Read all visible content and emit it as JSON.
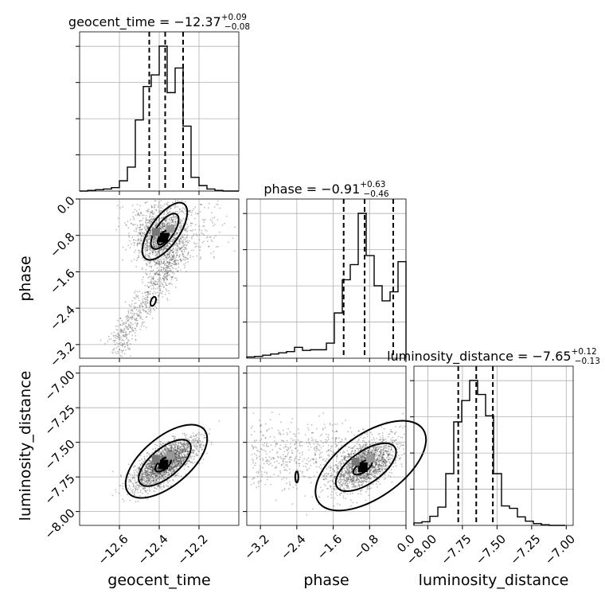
{
  "chart_data": {
    "type": "corner",
    "parameters": [
      "geocent_time",
      "phase",
      "luminosity_distance"
    ],
    "titles": [
      {
        "param": "geocent_time",
        "median": "−12.37",
        "upper": "+0.09",
        "lower": "−0.08"
      },
      {
        "param": "phase",
        "median": "−0.91",
        "upper": "+0.63",
        "lower": "−0.46"
      },
      {
        "param": "luminosity_distance",
        "median": "−7.65",
        "upper": "+0.12",
        "lower": "−0.13"
      }
    ],
    "ranges": {
      "geocent_time": [
        -12.8,
        -12.0
      ],
      "phase": [
        -3.5,
        0.0
      ],
      "luminosity_distance": [
        -8.1,
        -6.95
      ]
    },
    "ticks": {
      "geocent_time": {
        "values": [
          -12.6,
          -12.4,
          -12.2
        ],
        "labels": [
          "−12.6",
          "−12.4",
          "−12.2"
        ]
      },
      "phase_x": {
        "values": [
          -3.2,
          -2.4,
          -1.6,
          -0.8,
          0.0
        ],
        "labels": [
          "−3.2",
          "−2.4",
          "−1.6",
          "−0.8",
          "0.0"
        ]
      },
      "phase_y": {
        "values": [
          0.0,
          -0.8,
          -1.6,
          -2.4,
          -3.2
        ],
        "labels": [
          "0.0",
          "−0.8",
          "−1.6",
          "−2.4",
          "−3.2"
        ]
      },
      "luminosity_distance_x": {
        "values": [
          -8.0,
          -7.75,
          -7.5,
          -7.25,
          -7.0
        ],
        "labels": [
          "−8.00",
          "−7.75",
          "−7.50",
          "−7.25",
          "−7.00"
        ]
      },
      "luminosity_distance_y": {
        "values": [
          -7.0,
          -7.25,
          -7.5,
          -7.75,
          -8.0
        ],
        "labels": [
          "−7.00",
          "−7.25",
          "−7.50",
          "−7.75",
          "−8.00"
        ]
      }
    },
    "quantiles": {
      "geocent_time": [
        -12.45,
        -12.37,
        -12.28
      ],
      "phase": [
        -1.37,
        -0.91,
        -0.28
      ],
      "luminosity_distance": [
        -7.78,
        -7.65,
        -7.53
      ]
    },
    "histograms": {
      "geocent_time": {
        "edges": [
          -12.8,
          -12.76,
          -12.72,
          -12.68,
          -12.64,
          -12.6,
          -12.56,
          -12.52,
          -12.48,
          -12.44,
          -12.4,
          -12.36,
          -12.32,
          -12.28,
          -12.24,
          -12.2,
          -12.16,
          -12.12,
          -12.08,
          -12.04,
          -12.0
        ],
        "counts": [
          0,
          1,
          2,
          3,
          5,
          15,
          35,
          104,
          153,
          170,
          212,
          144,
          180,
          95,
          20,
          8,
          3,
          1,
          0,
          0
        ]
      },
      "phase": {
        "edges": [
          -3.5,
          -3.325,
          -3.15,
          -2.975,
          -2.8,
          -2.625,
          -2.45,
          -2.275,
          -2.1,
          -1.925,
          -1.75,
          -1.575,
          -1.4,
          -1.225,
          -1.05,
          -0.875,
          -0.7,
          -0.525,
          -0.35,
          -0.175,
          0.0
        ],
        "counts": [
          2,
          3,
          5,
          7,
          9,
          11,
          18,
          13,
          14,
          14,
          25,
          75,
          130,
          155,
          240,
          170,
          120,
          95,
          110,
          160
        ]
      },
      "luminosity_distance": {
        "edges": [
          -8.1,
          -8.0425,
          -7.985,
          -7.9275,
          -7.87,
          -7.8125,
          -7.755,
          -7.6975,
          -7.64,
          -7.5825,
          -7.525,
          -7.4675,
          -7.41,
          -7.3525,
          -7.295,
          -7.2375,
          -7.18,
          -7.1225,
          -7.065,
          -7.0075
        ],
        "counts": [
          4,
          6,
          15,
          30,
          85,
          170,
          205,
          238,
          215,
          180,
          85,
          32,
          28,
          14,
          7,
          3,
          1,
          0,
          0
        ]
      }
    },
    "density_peaks": [
      {
        "x": "geocent_time",
        "y": "phase",
        "center": [
          -12.38,
          -0.85
        ]
      },
      {
        "x": "geocent_time",
        "y": "luminosity_distance",
        "center": [
          -12.38,
          -7.66
        ]
      },
      {
        "x": "phase",
        "y": "luminosity_distance",
        "center": [
          -0.95,
          -7.68
        ]
      }
    ]
  }
}
